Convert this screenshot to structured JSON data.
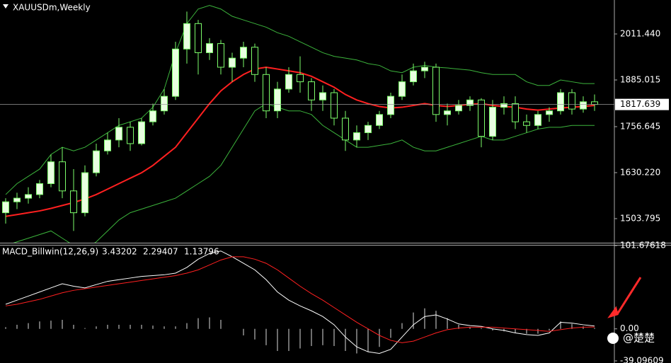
{
  "chart_data": [
    {
      "type": "candlestick",
      "title": "XAUUSDm,Weekly",
      "open": [
        1520,
        1550,
        1560,
        1570,
        1600,
        1660,
        1580,
        1520,
        1630,
        1690,
        1720,
        1755,
        1710,
        1770,
        1800,
        1840,
        1970,
        2040,
        1960,
        1985,
        1920,
        1945,
        1975,
        1900,
        1800,
        1860,
        1900,
        1880,
        1830,
        1850,
        1780,
        1720,
        1740,
        1760,
        1790,
        1840,
        1880,
        1910,
        1920,
        1790,
        1800,
        1815,
        1830,
        1730,
        1810,
        1820,
        1770,
        1760,
        1790,
        1800,
        1850,
        1805,
        1825
      ],
      "high": [
        1560,
        1575,
        1590,
        1610,
        1680,
        1700,
        1640,
        1650,
        1710,
        1740,
        1780,
        1770,
        1780,
        1820,
        1860,
        1990,
        2073,
        2050,
        2000,
        1995,
        1960,
        1990,
        1985,
        1920,
        1880,
        1920,
        1950,
        1890,
        1870,
        1860,
        1800,
        1760,
        1770,
        1800,
        1850,
        1900,
        1930,
        1935,
        1930,
        1820,
        1830,
        1840,
        1835,
        1830,
        1840,
        1840,
        1790,
        1800,
        1810,
        1860,
        1860,
        1840,
        1845
      ],
      "low": [
        1490,
        1530,
        1545,
        1560,
        1590,
        1560,
        1470,
        1510,
        1620,
        1680,
        1700,
        1690,
        1705,
        1760,
        1790,
        1830,
        1930,
        1900,
        1940,
        1900,
        1880,
        1920,
        1880,
        1780,
        1780,
        1850,
        1850,
        1800,
        1800,
        1760,
        1690,
        1700,
        1720,
        1750,
        1780,
        1830,
        1870,
        1890,
        1770,
        1760,
        1790,
        1800,
        1700,
        1720,
        1790,
        1750,
        1740,
        1750,
        1770,
        1790,
        1790,
        1795,
        1800
      ],
      "close": [
        1550,
        1560,
        1570,
        1600,
        1660,
        1580,
        1520,
        1630,
        1690,
        1720,
        1755,
        1710,
        1770,
        1800,
        1840,
        1970,
        2040,
        1960,
        1985,
        1920,
        1945,
        1975,
        1900,
        1800,
        1860,
        1900,
        1880,
        1830,
        1850,
        1780,
        1720,
        1740,
        1760,
        1790,
        1840,
        1880,
        1910,
        1920,
        1790,
        1800,
        1815,
        1830,
        1730,
        1810,
        1820,
        1770,
        1760,
        1790,
        1800,
        1850,
        1805,
        1825,
        1817.639
      ],
      "up_color": "#e8ffe0",
      "down_color": "#000000",
      "candle_outline": "#7cfc6a",
      "series": [
        {
          "color": "#ff2020",
          "values": [
            1510,
            1515,
            1520,
            1525,
            1532,
            1540,
            1548,
            1558,
            1570,
            1585,
            1600,
            1615,
            1630,
            1650,
            1675,
            1700,
            1740,
            1780,
            1820,
            1855,
            1880,
            1900,
            1915,
            1920,
            1915,
            1910,
            1905,
            1895,
            1880,
            1865,
            1845,
            1830,
            1820,
            1812,
            1808,
            1810,
            1815,
            1820,
            1815,
            1812,
            1815,
            1818,
            1820,
            1815,
            1812,
            1810,
            1805,
            1802,
            1805,
            1808,
            1810,
            1812,
            1815
          ]
        },
        {
          "color": "#3cb43c",
          "values": [
            1570,
            1600,
            1620,
            1640,
            1680,
            1700,
            1690,
            1700,
            1720,
            1740,
            1760,
            1770,
            1780,
            1810,
            1860,
            1960,
            2040,
            2080,
            2090,
            2080,
            2060,
            2050,
            2040,
            2030,
            2015,
            2005,
            1990,
            1975,
            1960,
            1950,
            1945,
            1940,
            1930,
            1925,
            1910,
            1905,
            1920,
            1925,
            1920,
            1918,
            1915,
            1912,
            1905,
            1900,
            1900,
            1900,
            1880,
            1870,
            1870,
            1885,
            1880,
            1875,
            1875
          ]
        },
        {
          "color": "#3cb43c",
          "values": [
            1430,
            1440,
            1450,
            1460,
            1470,
            1450,
            1430,
            1420,
            1440,
            1470,
            1500,
            1520,
            1530,
            1540,
            1550,
            1560,
            1580,
            1600,
            1620,
            1650,
            1700,
            1750,
            1800,
            1820,
            1810,
            1800,
            1800,
            1790,
            1760,
            1740,
            1720,
            1700,
            1700,
            1705,
            1710,
            1720,
            1700,
            1690,
            1690,
            1700,
            1710,
            1720,
            1730,
            1720,
            1720,
            1730,
            1740,
            1750,
            1755,
            1755,
            1760,
            1760,
            1760
          ]
        }
      ],
      "ylim": [
        1437.6,
        2104.8
      ],
      "yticks": [
        {
          "value": 2011.44,
          "label": "2011.440"
        },
        {
          "value": 1885.015,
          "label": "1885.015"
        },
        {
          "value": 1756.645,
          "label": "1756.645"
        },
        {
          "value": 1630.22,
          "label": "1630.220"
        },
        {
          "value": 1503.795,
          "label": "1503.795"
        }
      ],
      "last_price": 1817.639
    },
    {
      "type": "macd",
      "title": "MACD_Billwin(12,26,9)",
      "series": [
        {
          "color": "#ffffff",
          "values": [
            30,
            35,
            40,
            45,
            50,
            55,
            52,
            50,
            54,
            58,
            60,
            62,
            64,
            65,
            66,
            68,
            75,
            85,
            92,
            95,
            88,
            80,
            72,
            60,
            45,
            35,
            28,
            22,
            15,
            5,
            -10,
            -22,
            -28,
            -30,
            -25,
            -10,
            5,
            15,
            17,
            12,
            6,
            4,
            3,
            0,
            -2,
            -5,
            -7,
            -8,
            -5,
            8,
            7,
            5,
            3.43202
          ]
        },
        {
          "color": "#ff2020",
          "values": [
            28,
            30,
            33,
            36,
            40,
            44,
            47,
            49,
            51,
            53,
            55,
            57,
            59,
            61,
            63,
            65,
            68,
            72,
            78,
            84,
            88,
            88,
            85,
            80,
            72,
            62,
            52,
            43,
            35,
            26,
            17,
            8,
            0,
            -8,
            -14,
            -17,
            -15,
            -10,
            -5,
            -1,
            1,
            2,
            2,
            2,
            1,
            0,
            -1,
            -2,
            -3,
            -1,
            1,
            2,
            2.29407
          ]
        }
      ],
      "histogram": [
        2,
        5,
        7,
        9,
        10,
        11,
        5,
        1,
        3,
        5,
        5,
        5,
        5,
        4,
        3,
        3,
        7,
        13,
        14,
        11,
        0,
        -8,
        -13,
        -20,
        -27,
        -27,
        -24,
        -21,
        -20,
        -21,
        -27,
        -30,
        -28,
        -22,
        -11,
        7,
        20,
        25,
        22,
        13,
        5,
        2,
        1,
        -2,
        -3,
        -5,
        -6,
        -6,
        -2,
        9,
        6,
        3,
        1.13796
      ],
      "histogram_color": "#dddddd",
      "ylim": [
        -39.09609,
        101.67618
      ],
      "yticks": [
        101.67618,
        {
          "value": 0,
          "label": "0.00"
        },
        -39.09609
      ]
    }
  ],
  "watermark": "@楚楚"
}
